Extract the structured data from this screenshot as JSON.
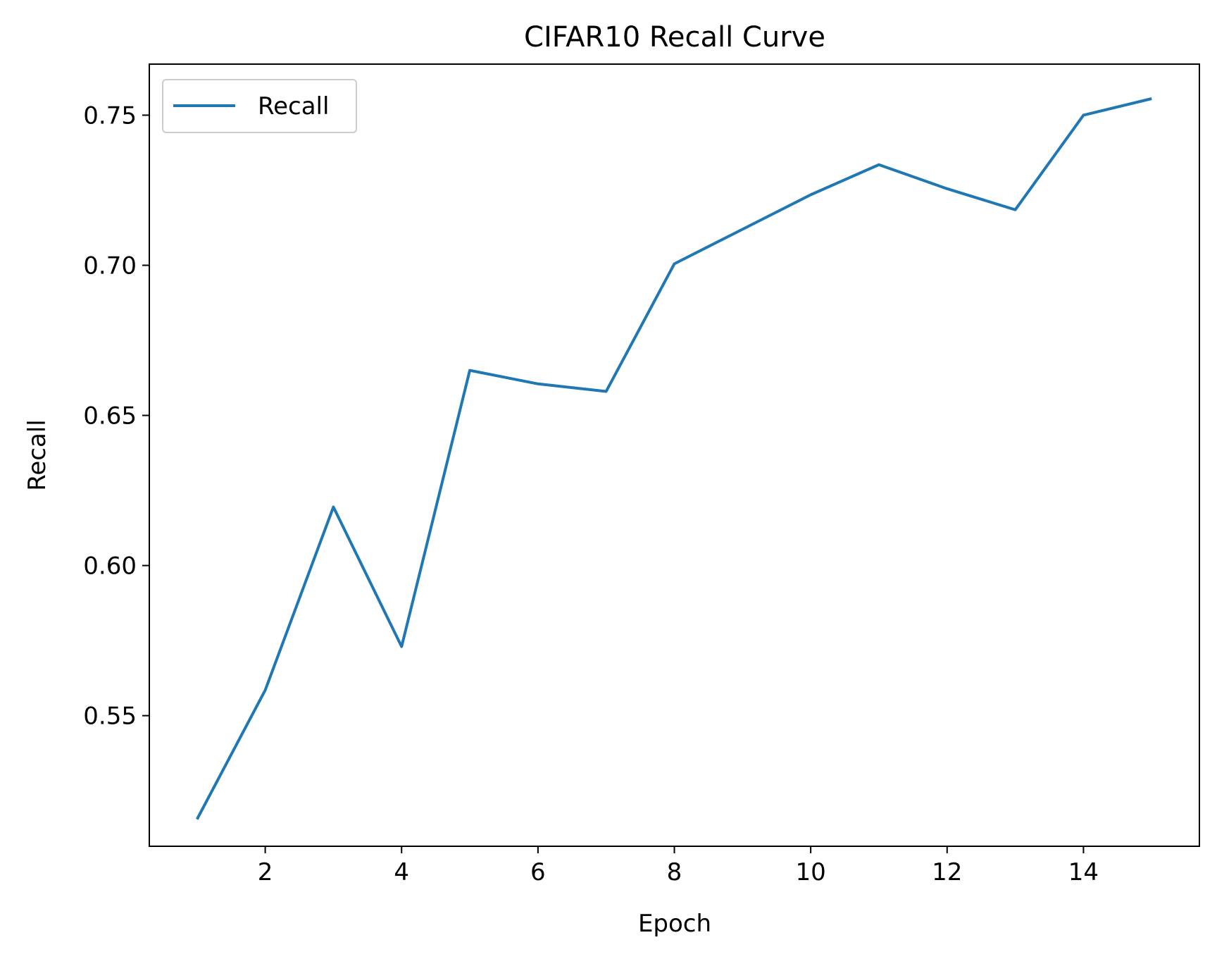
{
  "chart_data": {
    "type": "line",
    "title": "CIFAR10 Recall Curve",
    "xlabel": "Epoch",
    "ylabel": "Recall",
    "xlim": [
      0.3,
      15.7
    ],
    "ylim": [
      0.5065,
      0.767
    ],
    "xticks": [
      2,
      4,
      6,
      8,
      10,
      12,
      14
    ],
    "xtick_labels": [
      "2",
      "4",
      "6",
      "8",
      "10",
      "12",
      "14"
    ],
    "yticks": [
      0.55,
      0.6,
      0.65,
      0.7,
      0.75
    ],
    "ytick_labels": [
      "0.55",
      "0.60",
      "0.65",
      "0.70",
      "0.75"
    ],
    "grid": false,
    "legend_position": "top-left",
    "x": [
      1,
      2,
      3,
      4,
      5,
      6,
      7,
      8,
      9,
      10,
      11,
      12,
      13,
      14,
      15
    ],
    "series": [
      {
        "name": "Recall",
        "color": "#1f77b4",
        "values": [
          0.5155,
          0.5585,
          0.6195,
          0.573,
          0.665,
          0.6605,
          0.658,
          0.7005,
          0.712,
          0.7235,
          0.7335,
          0.7255,
          0.7185,
          0.75,
          0.7555
        ]
      }
    ]
  }
}
